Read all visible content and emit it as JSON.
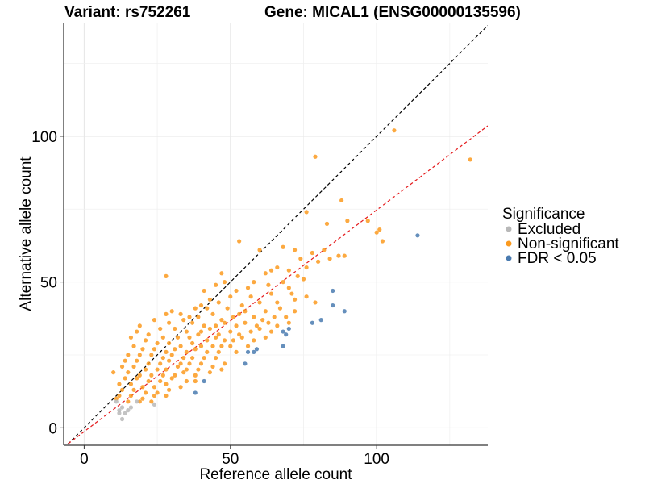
{
  "chart_data": {
    "type": "scatter",
    "title_left": "Variant: rs752261",
    "title_right": "Gene: MICAL1 (ENSG00000135596)",
    "xlabel": "Reference allele count",
    "ylabel": "Alternative allele count",
    "xlim": [
      -7,
      138
    ],
    "ylim": [
      -6,
      139
    ],
    "x_ticks": [
      0,
      50,
      100
    ],
    "y_ticks": [
      0,
      50,
      100
    ],
    "grid": true,
    "reference_lines": [
      {
        "name": "identity",
        "slope": 1.0,
        "intercept": 0,
        "color": "#000000",
        "dash": "dashed"
      },
      {
        "name": "fit",
        "slope": 0.76,
        "intercept": -1.3,
        "color": "#e41a1c",
        "dash": "dashed"
      }
    ],
    "legend": {
      "title": "Significance",
      "position": "right",
      "entries": [
        {
          "label": "Excluded",
          "color": "#b8b8b8"
        },
        {
          "label": "Non-significant",
          "color": "#fb9a1e"
        },
        {
          "label": "FDR < 0.05",
          "color": "#4a7bb0"
        }
      ]
    },
    "series": [
      {
        "name": "Excluded",
        "color": "#b8b8b8",
        "points": [
          [
            12,
            6
          ],
          [
            13,
            7
          ],
          [
            13,
            3
          ],
          [
            14,
            5
          ],
          [
            15,
            6
          ],
          [
            16,
            7
          ],
          [
            18,
            9
          ],
          [
            24,
            8
          ],
          [
            11,
            9
          ],
          [
            12,
            5
          ]
        ]
      },
      {
        "name": "FDR < 0.05",
        "color": "#4a7bb0",
        "points": [
          [
            38,
            12
          ],
          [
            41,
            16
          ],
          [
            55,
            22
          ],
          [
            56,
            26
          ],
          [
            58,
            26
          ],
          [
            59,
            27
          ],
          [
            68,
            28
          ],
          [
            68,
            33
          ],
          [
            69,
            32
          ],
          [
            70,
            34
          ],
          [
            78,
            36
          ],
          [
            81,
            37
          ],
          [
            85,
            42
          ],
          [
            85,
            47
          ],
          [
            89,
            40
          ],
          [
            114,
            66
          ]
        ]
      },
      {
        "name": "Non-significant",
        "color": "#fb9a1e",
        "points": [
          [
            106,
            102
          ],
          [
            79,
            93
          ],
          [
            132,
            92
          ],
          [
            88,
            78
          ],
          [
            76,
            74
          ],
          [
            83,
            70
          ],
          [
            90,
            71
          ],
          [
            97,
            71
          ],
          [
            101,
            68
          ],
          [
            100,
            67
          ],
          [
            102,
            64
          ],
          [
            53,
            64
          ],
          [
            60,
            61
          ],
          [
            68,
            62
          ],
          [
            72,
            61
          ],
          [
            78,
            60
          ],
          [
            82,
            61
          ],
          [
            87,
            59
          ],
          [
            89,
            59
          ],
          [
            74,
            58
          ],
          [
            64,
            54
          ],
          [
            70,
            54
          ],
          [
            76,
            55
          ],
          [
            80,
            57
          ],
          [
            84,
            58
          ],
          [
            28,
            52
          ],
          [
            47,
            53
          ],
          [
            62,
            53
          ],
          [
            66,
            55
          ],
          [
            73,
            52
          ],
          [
            48,
            50
          ],
          [
            58,
            50
          ],
          [
            68,
            50
          ],
          [
            75,
            51
          ],
          [
            41,
            47
          ],
          [
            45,
            49
          ],
          [
            52,
            47
          ],
          [
            56,
            48
          ],
          [
            63,
            49
          ],
          [
            70,
            48
          ],
          [
            71,
            46
          ],
          [
            43,
            44
          ],
          [
            50,
            45
          ],
          [
            57,
            45
          ],
          [
            64,
            46
          ],
          [
            76,
            45
          ],
          [
            40,
            42
          ],
          [
            46,
            43
          ],
          [
            54,
            42
          ],
          [
            60,
            43
          ],
          [
            66,
            43
          ],
          [
            72,
            44
          ],
          [
            79,
            43
          ],
          [
            30,
            40
          ],
          [
            38,
            41
          ],
          [
            42,
            41
          ],
          [
            49,
            41
          ],
          [
            55,
            40
          ],
          [
            62,
            40
          ],
          [
            67,
            41
          ],
          [
            72,
            40
          ],
          [
            28,
            39
          ],
          [
            33,
            39
          ],
          [
            36,
            38
          ],
          [
            39,
            38
          ],
          [
            44,
            39
          ],
          [
            47,
            37
          ],
          [
            51,
            38
          ],
          [
            53,
            39
          ],
          [
            58,
            38
          ],
          [
            61,
            37
          ],
          [
            65,
            38
          ],
          [
            69,
            38
          ],
          [
            24,
            37
          ],
          [
            29,
            36
          ],
          [
            34,
            37
          ],
          [
            37,
            36
          ],
          [
            41,
            35
          ],
          [
            45,
            35
          ],
          [
            48,
            36
          ],
          [
            52,
            35
          ],
          [
            55,
            36
          ],
          [
            59,
            35
          ],
          [
            63,
            36
          ],
          [
            66,
            35
          ],
          [
            70,
            36
          ],
          [
            19,
            35
          ],
          [
            26,
            34
          ],
          [
            31,
            34
          ],
          [
            35,
            33
          ],
          [
            40,
            33
          ],
          [
            43,
            34
          ],
          [
            46,
            32
          ],
          [
            50,
            33
          ],
          [
            53,
            32
          ],
          [
            57,
            33
          ],
          [
            60,
            34
          ],
          [
            64,
            33
          ],
          [
            18,
            33
          ],
          [
            22,
            32
          ],
          [
            27,
            31
          ],
          [
            32,
            31
          ],
          [
            36,
            31
          ],
          [
            39,
            32
          ],
          [
            42,
            30
          ],
          [
            45,
            31
          ],
          [
            48,
            30
          ],
          [
            51,
            30
          ],
          [
            54,
            31
          ],
          [
            58,
            30
          ],
          [
            62,
            31
          ],
          [
            16,
            31
          ],
          [
            21,
            30
          ],
          [
            25,
            29
          ],
          [
            29,
            29
          ],
          [
            33,
            28
          ],
          [
            37,
            29
          ],
          [
            40,
            28
          ],
          [
            44,
            28
          ],
          [
            47,
            28
          ],
          [
            50,
            28
          ],
          [
            56,
            28
          ],
          [
            17,
            28
          ],
          [
            20,
            27
          ],
          [
            24,
            27
          ],
          [
            28,
            26
          ],
          [
            31,
            27
          ],
          [
            35,
            26
          ],
          [
            38,
            27
          ],
          [
            42,
            26
          ],
          [
            46,
            26
          ],
          [
            52,
            26
          ],
          [
            15,
            25
          ],
          [
            19,
            25
          ],
          [
            23,
            25
          ],
          [
            27,
            24
          ],
          [
            30,
            25
          ],
          [
            34,
            24
          ],
          [
            37,
            24
          ],
          [
            41,
            24
          ],
          [
            45,
            24
          ],
          [
            14,
            23
          ],
          [
            18,
            23
          ],
          [
            22,
            22
          ],
          [
            26,
            22
          ],
          [
            29,
            23
          ],
          [
            33,
            22
          ],
          [
            36,
            22
          ],
          [
            40,
            22
          ],
          [
            44,
            21
          ],
          [
            48,
            22
          ],
          [
            13,
            21
          ],
          [
            17,
            21
          ],
          [
            21,
            20
          ],
          [
            25,
            20
          ],
          [
            28,
            20
          ],
          [
            32,
            21
          ],
          [
            35,
            20
          ],
          [
            39,
            20
          ],
          [
            43,
            19
          ],
          [
            47,
            20
          ],
          [
            10,
            19
          ],
          [
            15,
            19
          ],
          [
            19,
            18
          ],
          [
            23,
            18
          ],
          [
            27,
            18
          ],
          [
            31,
            18
          ],
          [
            34,
            19
          ],
          [
            38,
            18
          ],
          [
            14,
            17
          ],
          [
            18,
            17
          ],
          [
            22,
            16
          ],
          [
            26,
            16
          ],
          [
            30,
            17
          ],
          [
            35,
            16
          ],
          [
            38,
            16
          ],
          [
            12,
            15
          ],
          [
            16,
            15
          ],
          [
            20,
            14
          ],
          [
            24,
            14
          ],
          [
            28,
            15
          ],
          [
            33,
            14
          ],
          [
            13,
            13
          ],
          [
            17,
            13
          ],
          [
            21,
            12
          ],
          [
            25,
            12
          ],
          [
            29,
            13
          ],
          [
            12,
            11
          ],
          [
            16,
            11
          ],
          [
            20,
            10
          ],
          [
            24,
            11
          ],
          [
            28,
            11
          ],
          [
            11,
            10
          ],
          [
            15,
            9
          ],
          [
            19,
            9
          ],
          [
            23,
            9
          ]
        ]
      }
    ]
  }
}
